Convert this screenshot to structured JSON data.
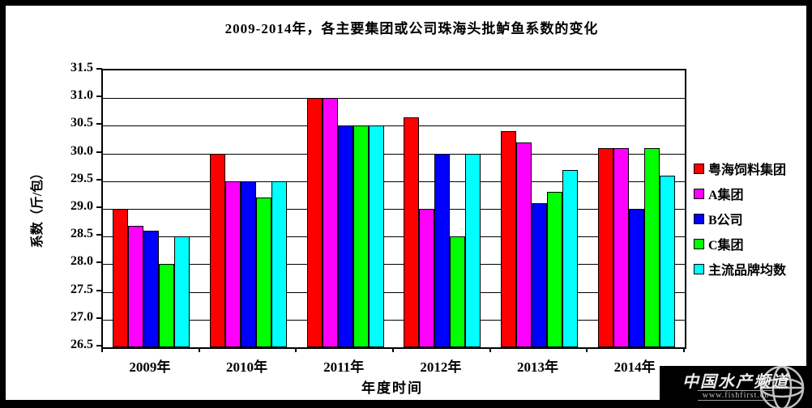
{
  "chart_data": {
    "type": "bar",
    "title": "2009-2014年，各主要集团或公司珠海头批鲈鱼系数的变化",
    "xlabel": "年度时间",
    "ylabel": "系数（斤/包）",
    "ylim": [
      26.5,
      31.5
    ],
    "ytick_step": 0.5,
    "grid": true,
    "legend_position": "right",
    "categories": [
      "2009年",
      "2010年",
      "2011年",
      "2012年",
      "2013年",
      "2014年"
    ],
    "series": [
      {
        "name": "粤海饲料集团",
        "color": "#ff0000",
        "values": [
          29.0,
          30.0,
          31.0,
          30.65,
          30.4,
          30.1
        ]
      },
      {
        "name": "A集团",
        "color": "#ff00ff",
        "values": [
          28.7,
          29.5,
          31.0,
          29.0,
          30.2,
          30.1
        ]
      },
      {
        "name": "B公司",
        "color": "#0000ff",
        "values": [
          28.6,
          29.5,
          30.5,
          30.0,
          29.1,
          29.0
        ]
      },
      {
        "name": "C集团",
        "color": "#00ff00",
        "values": [
          28.0,
          29.2,
          30.5,
          28.5,
          29.3,
          30.1
        ]
      },
      {
        "name": "主流品牌均数",
        "color": "#00ffff",
        "values": [
          28.5,
          29.5,
          30.5,
          30.0,
          29.7,
          29.6
        ]
      }
    ],
    "axis_color": "#000000",
    "background_color": "#ffffff",
    "frame_color": "#000000"
  },
  "watermark": {
    "line1": "中国水产频道",
    "line2": "www.fishfirst.cn"
  }
}
